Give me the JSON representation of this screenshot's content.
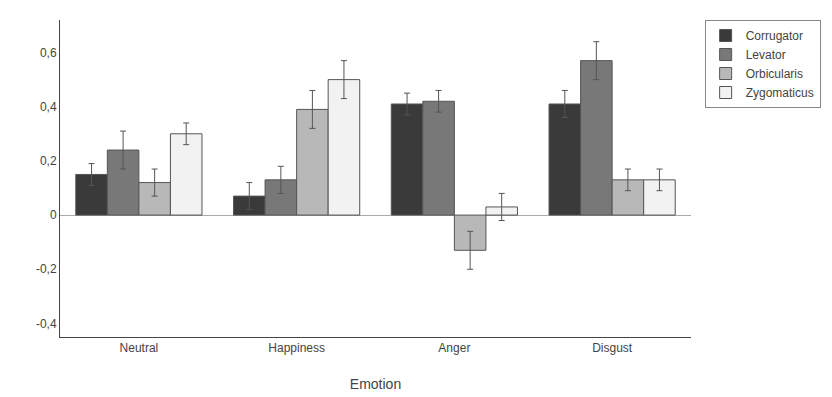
{
  "chart_data": {
    "type": "bar",
    "xlabel": "Emotion",
    "categories": [
      "Neutral",
      "Happiness",
      "Anger",
      "Disgust"
    ],
    "series": [
      {
        "name": "Corrugator",
        "color": "#3a3a3a",
        "values": [
          0.15,
          0.07,
          0.41,
          0.41
        ],
        "errors": [
          0.04,
          0.05,
          0.04,
          0.05
        ]
      },
      {
        "name": "Levator",
        "color": "#787878",
        "values": [
          0.24,
          0.13,
          0.42,
          0.57
        ],
        "errors": [
          0.07,
          0.05,
          0.04,
          0.07
        ]
      },
      {
        "name": "Orbicularis",
        "color": "#b8b8b8",
        "values": [
          0.12,
          0.39,
          -0.13,
          0.13
        ],
        "errors": [
          0.05,
          0.07,
          0.07,
          0.04
        ]
      },
      {
        "name": "Zygomaticus",
        "color": "#f2f2f2",
        "values": [
          0.3,
          0.5,
          0.03,
          0.13
        ],
        "errors": [
          0.04,
          0.07,
          0.05,
          0.04
        ]
      }
    ],
    "ylim": [
      -0.45,
      0.72
    ],
    "yticks": [
      {
        "value": -0.4,
        "label": "-0,4"
      },
      {
        "value": -0.2,
        "label": "-0,2"
      },
      0,
      {
        "value": 0.2,
        "label": "0,2"
      },
      {
        "value": 0.4,
        "label": "0,4"
      },
      {
        "value": 0.6,
        "label": "0,6"
      }
    ],
    "grid": false,
    "legend": "upper right"
  }
}
